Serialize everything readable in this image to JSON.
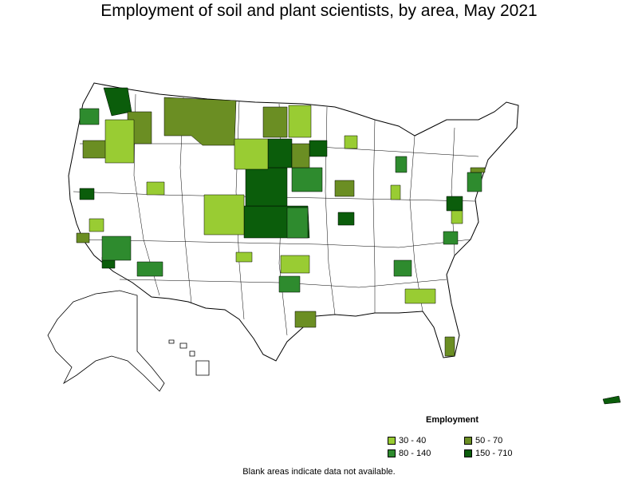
{
  "title": "Employment of soil and plant scientists, by area, May 2021",
  "legend": {
    "title": "Employment",
    "items": [
      {
        "label": "30 - 40",
        "color": "#99cc33"
      },
      {
        "label": "50 - 70",
        "color": "#6b8e23"
      },
      {
        "label": "80 - 140",
        "color": "#2e8b2e"
      },
      {
        "label": "150 - 710",
        "color": "#0b5d0b"
      }
    ]
  },
  "note": "Blank areas indicate data not available.",
  "colors": {
    "outline": "#000000",
    "background": "#ffffff"
  }
}
